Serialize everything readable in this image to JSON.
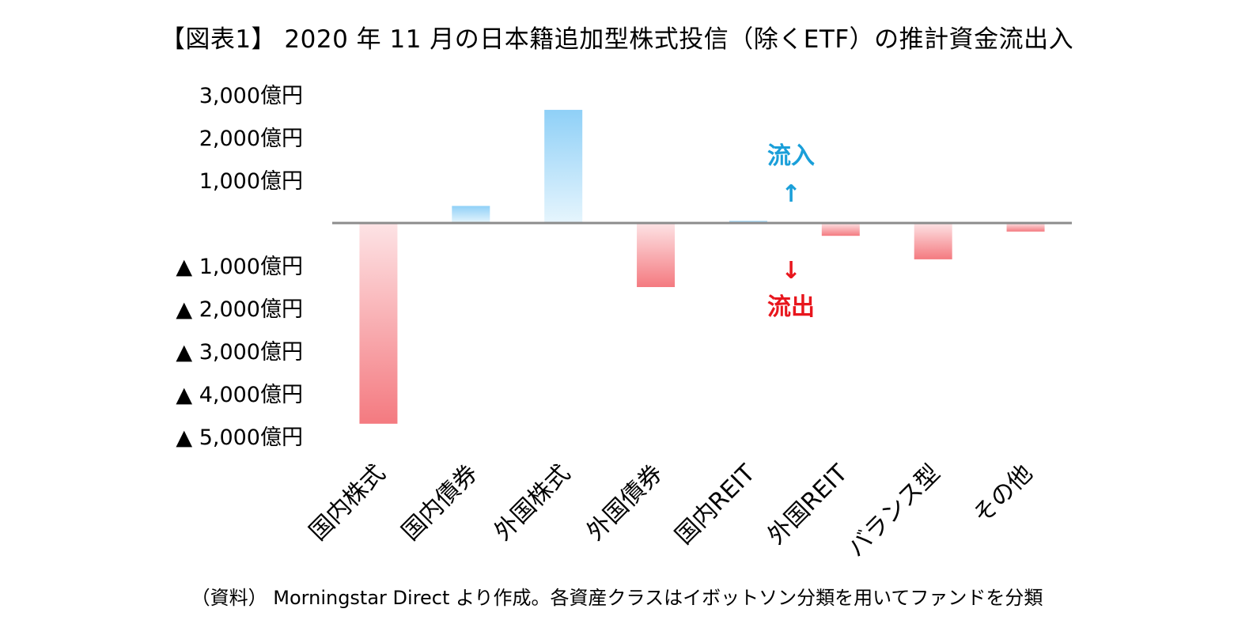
{
  "title": "【図表1】 2020 年 11 月の日本籍追加型株式投信（除くETF）の推計資金流出入",
  "source": "（資料） Morningstar Direct より作成。各資産クラスはイボットソン分類を用いてファンドを分類",
  "colors": {
    "inflow_top": "#8fd0f7",
    "inflow_bottom": "#e6f5fd",
    "outflow_top": "#fde3e5",
    "outflow_bottom": "#f47a80",
    "axis": "#8c8c8c",
    "annotation_in": "#1a9fd9",
    "annotation_out": "#e8161d"
  },
  "chart_data": {
    "type": "bar",
    "title": "【図表1】 2020 年 11 月の日本籍追加型株式投信（除くETF）の推計資金流出入",
    "xlabel": "",
    "ylabel": "",
    "categories": [
      "国内株式",
      "国内債券",
      "外国株式",
      "外国債券",
      "国内REIT",
      "外国REIT",
      "バランス型",
      "その他"
    ],
    "values": [
      -4700,
      400,
      2650,
      -1500,
      50,
      -300,
      -850,
      -200
    ],
    "ylim": [
      -5000,
      3000
    ],
    "yticks": [
      3000,
      2000,
      1000,
      -1000,
      -2000,
      -3000,
      -4000,
      -5000
    ],
    "ytick_labels": [
      "3,000億円",
      "2,000億円",
      "1,000億円",
      "▲ 1,000億円",
      "▲ 2,000億円",
      "▲ 3,000億円",
      "▲ 4,000億円",
      "▲ 5,000億円"
    ],
    "grid": false,
    "legend": "none",
    "annotations": {
      "inflow_label": "流入",
      "inflow_arrow": "↑",
      "outflow_arrow": "↓",
      "outflow_label": "流出"
    }
  }
}
